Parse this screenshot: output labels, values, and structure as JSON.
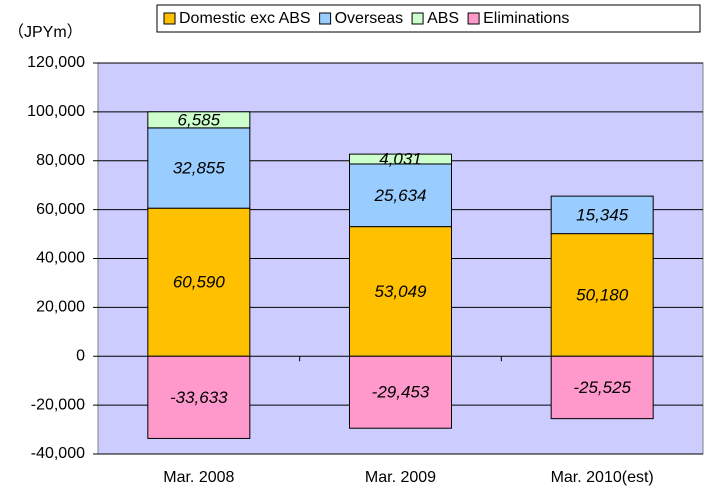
{
  "chart_data": {
    "type": "bar",
    "stacked": true,
    "unit_label": "（JPYm）",
    "categories": [
      "Mar. 2008",
      "Mar. 2009",
      "Mar. 2010(est)"
    ],
    "series": [
      {
        "name": "Domestic exc ABS",
        "color": "#ffc000",
        "values": [
          60590,
          53049,
          50180
        ],
        "value_labels": [
          "60,590",
          "53,049",
          "50,180"
        ]
      },
      {
        "name": "Overseas",
        "color": "#99ccff",
        "values": [
          32855,
          25634,
          15345
        ],
        "value_labels": [
          "32,855",
          "25,634",
          "15,345"
        ]
      },
      {
        "name": "ABS",
        "color": "#ccffcc",
        "values": [
          6585,
          4031,
          null
        ],
        "value_labels": [
          "6,585",
          "4,031",
          null
        ]
      },
      {
        "name": "Eliminations",
        "color": "#ff99cc",
        "values": [
          -33633,
          -29453,
          -25525
        ],
        "value_labels": [
          "-33,633",
          "-29,453",
          "-25,525"
        ]
      }
    ],
    "ylim": [
      -40000,
      120000
    ],
    "yticks": [
      {
        "value": -40000,
        "label": "-40,000"
      },
      {
        "value": -20000,
        "label": "-20,000"
      },
      0,
      {
        "value": 20000,
        "label": "20,000"
      },
      {
        "value": 40000,
        "label": "40,000"
      },
      {
        "value": 60000,
        "label": "60,000"
      },
      {
        "value": 80000,
        "label": "80,000"
      },
      {
        "value": 100000,
        "label": "100,000"
      },
      {
        "value": 120000,
        "label": "120,000"
      }
    ],
    "grid": true,
    "background": "#ccccff",
    "legend": "top"
  }
}
